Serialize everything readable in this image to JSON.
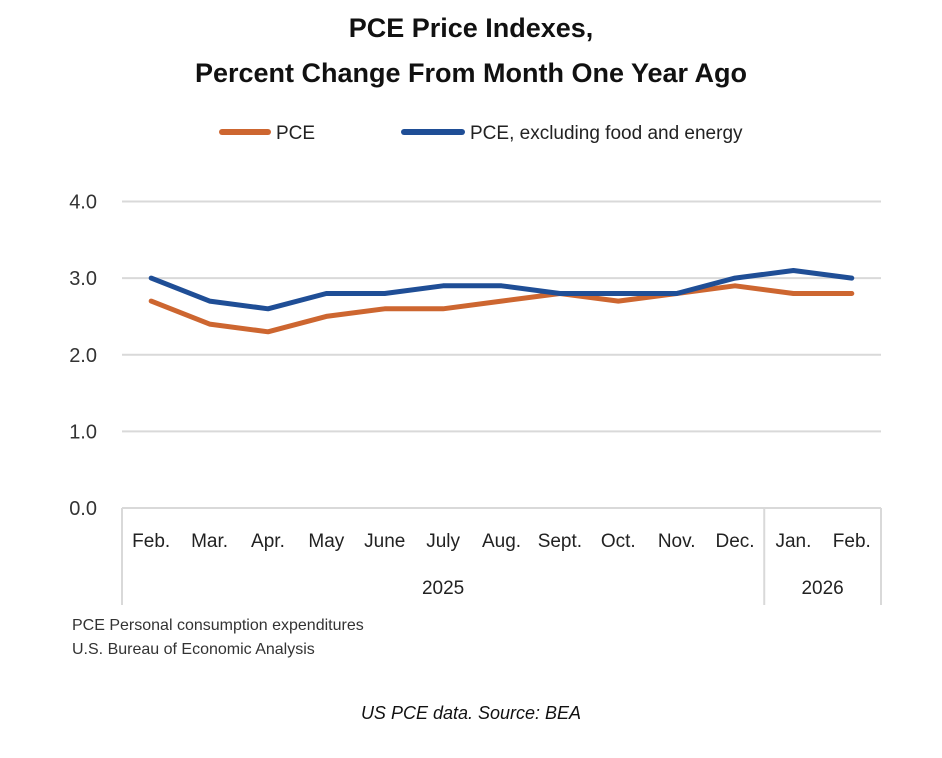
{
  "chart_data": {
    "type": "line",
    "title": [
      "PCE Price Indexes,",
      "Percent Change From Month One Year Ago"
    ],
    "xlabel": "",
    "ylabel": "",
    "ylim": [
      0,
      4
    ],
    "yticks": [
      0,
      1,
      2,
      3,
      4
    ],
    "ytick_labels": [
      "0.0",
      "1.0",
      "2.0",
      "3.0",
      "4.0"
    ],
    "grid": true,
    "legend_position": "top-center",
    "categories": [
      "Feb.",
      "Mar.",
      "Apr.",
      "May",
      "June",
      "July",
      "Aug.",
      "Sept.",
      "Oct.",
      "Nov.",
      "Dec.",
      "Jan.",
      "Feb."
    ],
    "year_groups": [
      {
        "label": "2025",
        "count": 11
      },
      {
        "label": "2026",
        "count": 2
      }
    ],
    "series": [
      {
        "name": "PCE",
        "color": "#CD6630",
        "values": [
          2.7,
          2.4,
          2.3,
          2.5,
          2.6,
          2.6,
          2.7,
          2.8,
          2.7,
          2.8,
          2.9,
          2.8,
          2.8
        ]
      },
      {
        "name": "PCE, excluding food and energy",
        "color": "#1F4E96",
        "values": [
          3.0,
          2.7,
          2.6,
          2.8,
          2.8,
          2.9,
          2.9,
          2.8,
          2.8,
          2.8,
          3.0,
          3.1,
          3.0
        ]
      }
    ]
  },
  "notes": {
    "line1": "PCE Personal consumption expenditures",
    "line2": "U.S. Bureau of Economic Analysis"
  },
  "caption": "US PCE data. Source: BEA"
}
